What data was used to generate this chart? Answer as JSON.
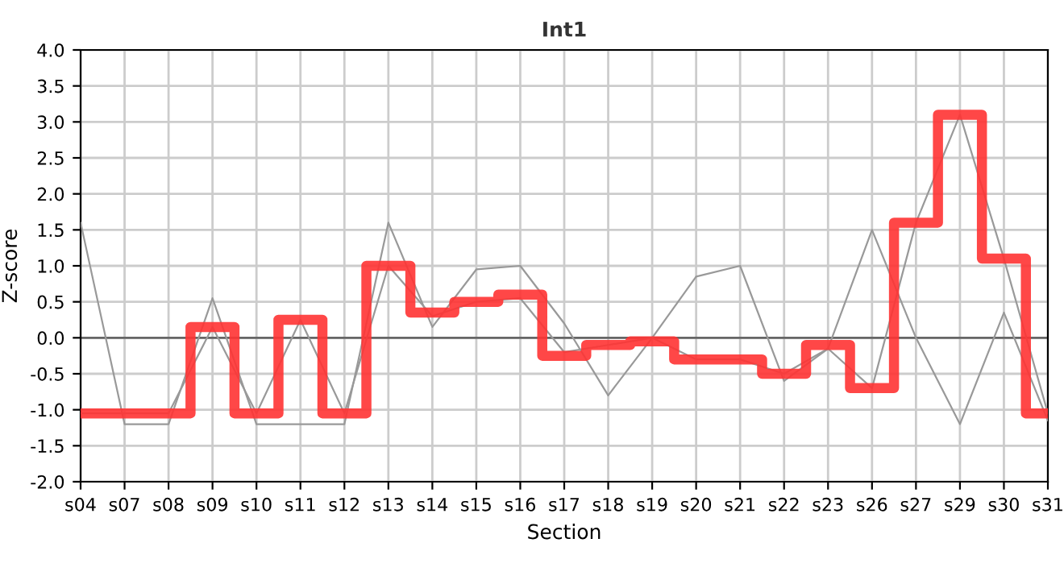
{
  "chart_data": {
    "type": "line",
    "title": "Int1",
    "xlabel": "Section",
    "ylabel": "Z-score",
    "categories": [
      "s04",
      "s07",
      "s08",
      "s09",
      "s10",
      "s11",
      "s12",
      "s13",
      "s14",
      "s15",
      "s16",
      "s17",
      "s18",
      "s19",
      "s20",
      "s21",
      "s22",
      "s23",
      "s26",
      "s27",
      "s29",
      "s30",
      "s31"
    ],
    "series": [
      {
        "color": "#999999",
        "values": [
          1.6,
          -1.2,
          -1.2,
          0.55,
          -1.2,
          -1.2,
          -1.2,
          1.6,
          0.15,
          0.95,
          1.0,
          0.2,
          -0.8,
          0.0,
          0.85,
          1.0,
          -0.6,
          -0.15,
          1.5,
          0.0,
          -1.2,
          0.35,
          -1.15
        ]
      },
      {
        "color": "#999999",
        "values": [
          -1.05,
          -1.05,
          -1.05,
          0.15,
          -1.05,
          0.25,
          -1.05,
          1.0,
          0.3,
          0.5,
          0.55,
          -0.2,
          -0.1,
          0.0,
          -0.3,
          -0.3,
          -0.5,
          -0.15,
          -0.7,
          1.6,
          3.1,
          1.1,
          -1.05
        ]
      },
      {
        "type": "step",
        "color": "#ff3333",
        "values": [
          -1.05,
          -1.05,
          -1.05,
          0.15,
          -1.05,
          0.25,
          -1.05,
          1.0,
          0.35,
          0.5,
          0.6,
          -0.25,
          -0.1,
          -0.05,
          -0.3,
          -0.3,
          -0.5,
          -0.1,
          -0.7,
          1.6,
          3.1,
          1.1,
          -1.05
        ]
      }
    ],
    "ylim": [
      -2.0,
      4.0
    ],
    "yticks": [
      {
        "value": -2,
        "label": "-2.0"
      },
      {
        "value": -1.5,
        "label": "-1.5"
      },
      {
        "value": -1,
        "label": "-1.0"
      },
      {
        "value": -0.5,
        "label": "-0.5"
      },
      {
        "value": 0,
        "label": "0.0"
      },
      {
        "value": 0.5,
        "label": "0.5"
      },
      {
        "value": 1,
        "label": "1.0"
      },
      {
        "value": 1.5,
        "label": "1.5"
      },
      {
        "value": 2,
        "label": "2.0"
      },
      {
        "value": 2.5,
        "label": "2.5"
      },
      {
        "value": 3,
        "label": "3.0"
      },
      {
        "value": 3.5,
        "label": "3.5"
      },
      {
        "value": 4,
        "label": "4.0"
      }
    ],
    "ref_lines": [
      {
        "axis": "y",
        "value": 0,
        "color": "#666666"
      }
    ],
    "grid": true
  }
}
